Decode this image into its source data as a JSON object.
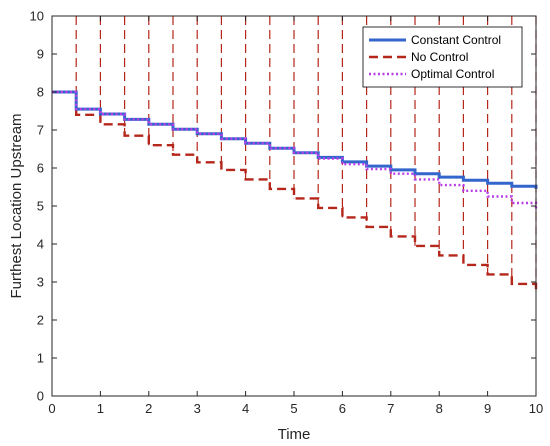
{
  "chart_data": {
    "type": "line",
    "xlabel": "Time",
    "ylabel": "Furthest Location Upstream",
    "xlim": [
      0,
      10
    ],
    "ylim": [
      0,
      10
    ],
    "xticks": [
      0,
      1,
      2,
      3,
      4,
      5,
      6,
      7,
      8,
      9,
      10
    ],
    "yticks": [
      0,
      1,
      2,
      3,
      4,
      5,
      6,
      7,
      8,
      9,
      10
    ],
    "grid": false,
    "legend_position": "top-right",
    "series": [
      {
        "name": "Constant Control",
        "color": "#3366cc",
        "line_style": "solid",
        "x": [
          0,
          0.5,
          1,
          1.5,
          2,
          2.5,
          3,
          3.5,
          4,
          4.5,
          5,
          5.5,
          6,
          6.5,
          7,
          7.5,
          8,
          8.5,
          9,
          9.5,
          10
        ],
        "y": [
          8.0,
          7.55,
          7.42,
          7.28,
          7.15,
          7.02,
          6.9,
          6.77,
          6.65,
          6.52,
          6.4,
          6.28,
          6.16,
          6.05,
          5.95,
          5.85,
          5.76,
          5.68,
          5.6,
          5.52,
          5.45
        ]
      },
      {
        "name": "No Control",
        "color": "#b5261b",
        "line_style": "dashed",
        "x": [
          0,
          0.5,
          1,
          1.5,
          2,
          2.5,
          3,
          3.5,
          4,
          4.5,
          5,
          5.5,
          6,
          6.5,
          7,
          7.5,
          8,
          8.5,
          9,
          9.5,
          10
        ],
        "y": [
          8.0,
          7.4,
          7.15,
          6.85,
          6.6,
          6.35,
          6.15,
          5.95,
          5.7,
          5.45,
          5.2,
          4.95,
          4.7,
          4.45,
          4.2,
          3.95,
          3.7,
          3.45,
          3.2,
          2.95,
          2.75
        ]
      },
      {
        "name": "Optimal Control",
        "color": "#b83ee8",
        "line_style": "dotted",
        "x": [
          0,
          0.5,
          1,
          1.5,
          2,
          2.5,
          3,
          3.5,
          4,
          4.5,
          5,
          5.5,
          6,
          6.5,
          7,
          7.5,
          8,
          8.5,
          9,
          9.5,
          10
        ],
        "y": [
          8.0,
          7.55,
          7.42,
          7.28,
          7.15,
          7.02,
          6.9,
          6.77,
          6.65,
          6.52,
          6.4,
          6.25,
          6.1,
          5.97,
          5.85,
          5.7,
          5.55,
          5.4,
          5.25,
          5.08,
          4.9
        ]
      }
    ]
  }
}
